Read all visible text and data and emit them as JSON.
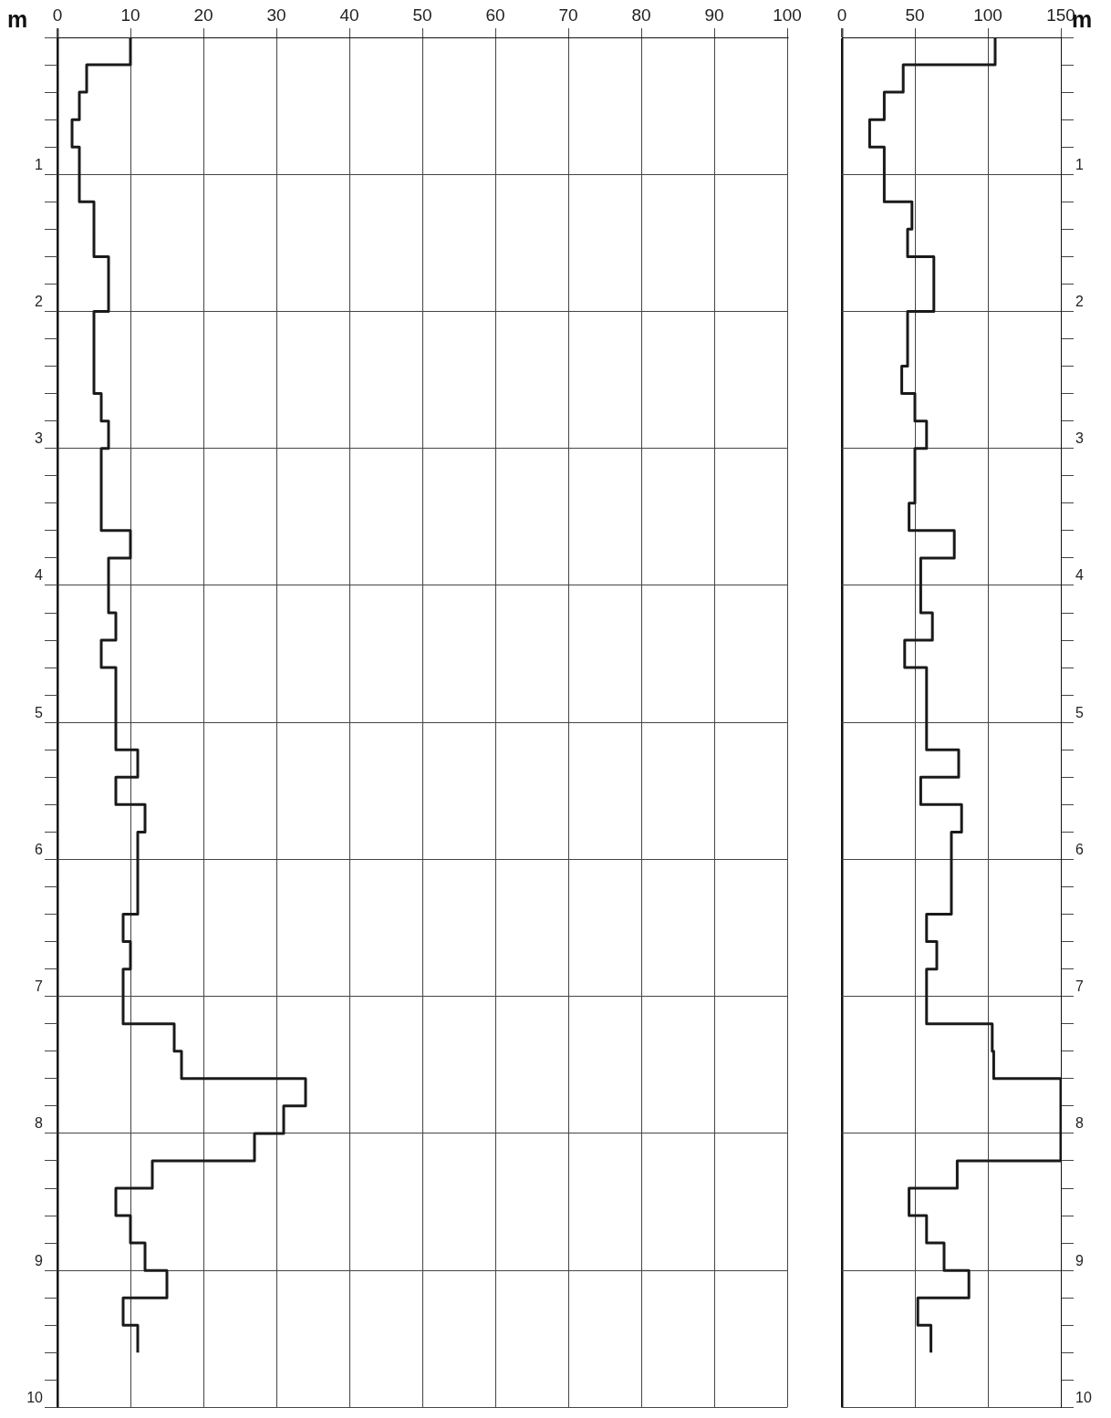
{
  "chart_data": [
    {
      "type": "step",
      "orientation": "horizontal",
      "ylabel": "m",
      "x": [
        0,
        0.2,
        0.4,
        0.6,
        0.8,
        1,
        1.2,
        1.4,
        1.6,
        1.8,
        2,
        2.2,
        2.4,
        2.6,
        2.8,
        3,
        3.2,
        3.4,
        3.6,
        3.8,
        4,
        4.2,
        4.4,
        4.6,
        4.8,
        5,
        5.2,
        5.4,
        5.6,
        5.8,
        6,
        6.2,
        6.4,
        6.6,
        6.8,
        7,
        7.2,
        7.4,
        7.6,
        7.8,
        8,
        8.2,
        8.4,
        8.6,
        8.8,
        9,
        9.2,
        9.4,
        9.6
      ],
      "series": [
        {
          "color": "#1a1a1a",
          "values": [
            10,
            4,
            3,
            2,
            3,
            3,
            5,
            5,
            7,
            7,
            5,
            5,
            5,
            6,
            7,
            6,
            6,
            6,
            10,
            7,
            7,
            8,
            6,
            8,
            8,
            8,
            11,
            8,
            12,
            11,
            11,
            11,
            9,
            10,
            9,
            9,
            16,
            17,
            34,
            31,
            27,
            13,
            8,
            10,
            12,
            15,
            9,
            11,
            11
          ]
        }
      ],
      "xlim": [
        0,
        100
      ],
      "xticks": [
        0,
        10,
        20,
        30,
        40,
        50,
        60,
        70,
        80,
        90,
        100
      ],
      "ylim": [
        10,
        0
      ],
      "yticks": [
        {
          "value": 0,
          "label": null
        },
        {
          "value": 0.2,
          "label": null
        },
        {
          "value": 0.4,
          "label": null
        },
        {
          "value": 0.6,
          "label": null
        },
        {
          "value": 0.8,
          "label": null
        },
        1,
        {
          "value": 1.2,
          "label": null
        },
        {
          "value": 1.4,
          "label": null
        },
        {
          "value": 1.6,
          "label": null
        },
        {
          "value": 1.8,
          "label": null
        },
        2,
        {
          "value": 2.2,
          "label": null
        },
        {
          "value": 2.4,
          "label": null
        },
        {
          "value": 2.6,
          "label": null
        },
        {
          "value": 2.8,
          "label": null
        },
        3,
        {
          "value": 3.2,
          "label": null
        },
        {
          "value": 3.4,
          "label": null
        },
        {
          "value": 3.6,
          "label": null
        },
        {
          "value": 3.8,
          "label": null
        },
        4,
        {
          "value": 4.2,
          "label": null
        },
        {
          "value": 4.4,
          "label": null
        },
        {
          "value": 4.6,
          "label": null
        },
        {
          "value": 4.8,
          "label": null
        },
        5,
        {
          "value": 5.2,
          "label": null
        },
        {
          "value": 5.4,
          "label": null
        },
        {
          "value": 5.6,
          "label": null
        },
        {
          "value": 5.8,
          "label": null
        },
        6,
        {
          "value": 6.2,
          "label": null
        },
        {
          "value": 6.4,
          "label": null
        },
        {
          "value": 6.6,
          "label": null
        },
        {
          "value": 6.8,
          "label": null
        },
        7,
        {
          "value": 7.2,
          "label": null
        },
        {
          "value": 7.4,
          "label": null
        },
        {
          "value": 7.6,
          "label": null
        },
        {
          "value": 7.8,
          "label": null
        },
        8,
        {
          "value": 8.2,
          "label": null
        },
        {
          "value": 8.4,
          "label": null
        },
        {
          "value": 8.6,
          "label": null
        },
        {
          "value": 8.8,
          "label": null
        },
        9,
        {
          "value": 9.2,
          "label": null
        },
        {
          "value": 9.4,
          "label": null
        },
        {
          "value": 9.6,
          "label": null
        },
        {
          "value": 9.8,
          "label": null
        },
        10
      ],
      "grid": true
    },
    {
      "type": "step",
      "orientation": "horizontal",
      "ylabel": "m",
      "x": [
        0,
        0.2,
        0.4,
        0.6,
        0.8,
        1,
        1.2,
        1.4,
        1.6,
        1.8,
        2,
        2.2,
        2.4,
        2.6,
        2.8,
        3,
        3.2,
        3.4,
        3.6,
        3.8,
        4,
        4.2,
        4.4,
        4.6,
        4.8,
        5,
        5.2,
        5.4,
        5.6,
        5.8,
        6,
        6.2,
        6.4,
        6.6,
        6.8,
        7,
        7.2,
        7.4,
        7.6,
        7.8,
        8,
        8.2,
        8.4,
        8.6,
        8.8,
        9,
        9.2,
        9.4,
        9.6
      ],
      "series": [
        {
          "color": "#1a1a1a",
          "values": [
            105,
            42,
            29,
            19,
            29,
            29,
            48,
            45,
            63,
            63,
            45,
            45,
            41,
            50,
            58,
            50,
            50,
            46,
            77,
            54,
            54,
            62,
            43,
            58,
            58,
            58,
            80,
            54,
            82,
            75,
            75,
            75,
            58,
            65,
            58,
            58,
            103,
            104,
            150,
            150,
            150,
            79,
            46,
            58,
            70,
            87,
            52,
            61,
            61
          ]
        }
      ],
      "xlim": [
        0,
        150
      ],
      "xticks": [
        0,
        50,
        100,
        150
      ],
      "ylim": [
        10,
        0
      ],
      "yticks": [
        {
          "value": 0,
          "label": null
        },
        {
          "value": 0.2,
          "label": null
        },
        {
          "value": 0.4,
          "label": null
        },
        {
          "value": 0.6,
          "label": null
        },
        {
          "value": 0.8,
          "label": null
        },
        1,
        {
          "value": 1.2,
          "label": null
        },
        {
          "value": 1.4,
          "label": null
        },
        {
          "value": 1.6,
          "label": null
        },
        {
          "value": 1.8,
          "label": null
        },
        2,
        {
          "value": 2.2,
          "label": null
        },
        {
          "value": 2.4,
          "label": null
        },
        {
          "value": 2.6,
          "label": null
        },
        {
          "value": 2.8,
          "label": null
        },
        3,
        {
          "value": 3.2,
          "label": null
        },
        {
          "value": 3.4,
          "label": null
        },
        {
          "value": 3.6,
          "label": null
        },
        {
          "value": 3.8,
          "label": null
        },
        4,
        {
          "value": 4.2,
          "label": null
        },
        {
          "value": 4.4,
          "label": null
        },
        {
          "value": 4.6,
          "label": null
        },
        {
          "value": 4.8,
          "label": null
        },
        5,
        {
          "value": 5.2,
          "label": null
        },
        {
          "value": 5.4,
          "label": null
        },
        {
          "value": 5.6,
          "label": null
        },
        {
          "value": 5.8,
          "label": null
        },
        6,
        {
          "value": 6.2,
          "label": null
        },
        {
          "value": 6.4,
          "label": null
        },
        {
          "value": 6.6,
          "label": null
        },
        {
          "value": 6.8,
          "label": null
        },
        7,
        {
          "value": 7.2,
          "label": null
        },
        {
          "value": 7.4,
          "label": null
        },
        {
          "value": 7.6,
          "label": null
        },
        {
          "value": 7.8,
          "label": null
        },
        8,
        {
          "value": 8.2,
          "label": null
        },
        {
          "value": 8.4,
          "label": null
        },
        {
          "value": 8.6,
          "label": null
        },
        {
          "value": 8.8,
          "label": null
        },
        9,
        {
          "value": 9.2,
          "label": null
        },
        {
          "value": 9.4,
          "label": null
        },
        {
          "value": 9.6,
          "label": null
        },
        {
          "value": 9.8,
          "label": null
        },
        10
      ],
      "grid": true
    }
  ]
}
